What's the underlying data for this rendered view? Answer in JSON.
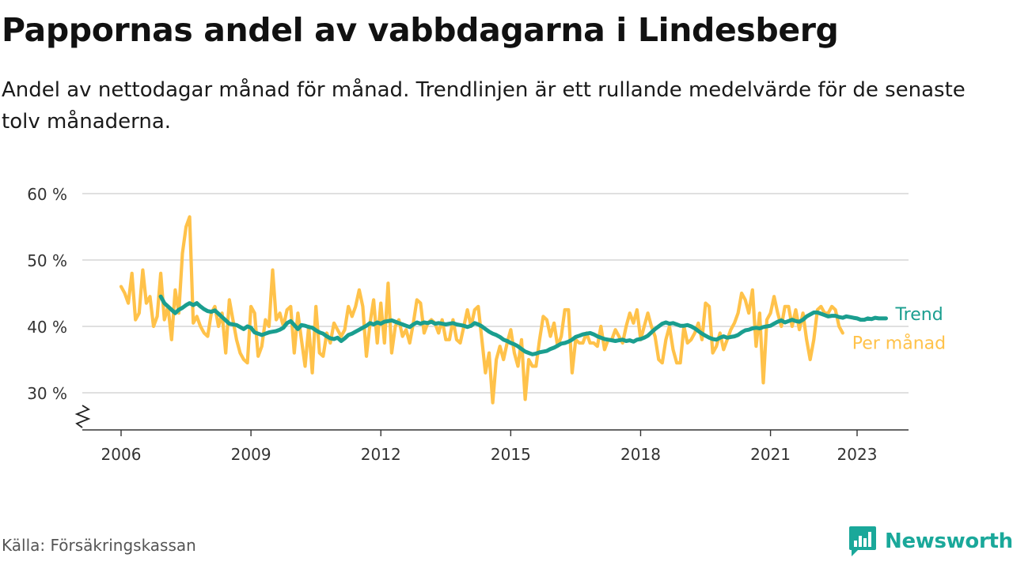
{
  "title": "Pappornas andel av vabbdagarna i Lindesberg",
  "subtitle": "Andel av nettodagar månad för månad. Trendlinjen är ett rullande medelvärde för de senaste tolv månaderna.",
  "source": "Källa: Försäkringskassan",
  "brand": {
    "name": "Newsworthy",
    "color": "#1aa89a",
    "icon": "bar-chart-speech-bubble-icon"
  },
  "chart_data": {
    "type": "line",
    "start": "2006-01",
    "x_ticks": [
      "2006",
      "2009",
      "2012",
      "2015",
      "2018",
      "2021",
      "2023"
    ],
    "y_ticks": [
      30,
      40,
      50,
      60
    ],
    "y_tick_suffix": " %",
    "ylim": [
      25,
      60
    ],
    "y_axis_break": true,
    "grid": true,
    "xlabel": "",
    "ylabel": "",
    "series": [
      {
        "name": "Per månad",
        "color": "#ffc24a",
        "start": "2006-01",
        "values": [
          46,
          45,
          43.5,
          48,
          41,
          42,
          48.5,
          43.5,
          44.5,
          40,
          41.5,
          48,
          41,
          43,
          38,
          45.5,
          42,
          51,
          55,
          56.5,
          40.5,
          41.5,
          40,
          39,
          38.5,
          42,
          43,
          40,
          42,
          36,
          44,
          41,
          38,
          36,
          35,
          34.5,
          43,
          42,
          35.5,
          37,
          41,
          40,
          48.5,
          41,
          42,
          40,
          42.5,
          43,
          36,
          42,
          38,
          34,
          40,
          33,
          43,
          36,
          35.5,
          39,
          37.5,
          40.5,
          39.5,
          38.5,
          39.5,
          43,
          41.5,
          43,
          45.5,
          43,
          35.5,
          40.5,
          44,
          37.5,
          43.5,
          37.5,
          46.5,
          36,
          40,
          41,
          38.5,
          39.5,
          37.5,
          40.5,
          44,
          43.5,
          39,
          40.5,
          41,
          40.5,
          39,
          41,
          38,
          38,
          41,
          38,
          37.5,
          40,
          42.5,
          40,
          42.5,
          43,
          38,
          33,
          36,
          28.5,
          35,
          37,
          35,
          37.5,
          39.5,
          36,
          34,
          38,
          29,
          35,
          34,
          34,
          38,
          41.5,
          41,
          38.5,
          40.5,
          37,
          38.5,
          42.5,
          42.5,
          33,
          38,
          37.5,
          37.5,
          39,
          37.5,
          37.5,
          37,
          40,
          36.5,
          38,
          38,
          39.5,
          38.5,
          37.5,
          40,
          42,
          40.5,
          42.5,
          38,
          40,
          42,
          40,
          38.5,
          35,
          34.5,
          38,
          40,
          36.5,
          34.5,
          34.5,
          40,
          37.5,
          38,
          39,
          40.5,
          38,
          43.5,
          43,
          36,
          37,
          39,
          36.5,
          38,
          39.5,
          40.5,
          42,
          45,
          44,
          42,
          45.5,
          37,
          42,
          31.5,
          41,
          42,
          44.5,
          42,
          40,
          43,
          43,
          40,
          42.5,
          39.5,
          42,
          38,
          35,
          38,
          42.5,
          43,
          42,
          42,
          43,
          42.5,
          40,
          39
        ]
      },
      {
        "name": "Trend",
        "color": "#1a9e8f",
        "start": "2006-12",
        "values": [
          44.5,
          43.5,
          43,
          42.5,
          42,
          42.5,
          42.8,
          43.2,
          43.5,
          43.2,
          43.5,
          43,
          42.6,
          42.3,
          42.2,
          42.4,
          41.9,
          41.4,
          40.9,
          40.4,
          40.3,
          40.2,
          39.9,
          39.6,
          40,
          39.8,
          39.1,
          38.9,
          38.7,
          38.9,
          39.1,
          39.2,
          39.3,
          39.5,
          39.8,
          40.5,
          40.8,
          40.2,
          39.6,
          40.2,
          40.1,
          39.9,
          39.8,
          39.4,
          39.1,
          38.9,
          38.5,
          38.2,
          38.1,
          38.3,
          37.8,
          38.2,
          38.7,
          38.9,
          39.2,
          39.5,
          39.8,
          40.1,
          40.5,
          40.3,
          40.6,
          40.4,
          40.7,
          40.8,
          40.9,
          40.7,
          40.5,
          40.3,
          40.1,
          39.9,
          40.3,
          40.6,
          40.4,
          40.6,
          40.5,
          40.7,
          40.4,
          40.5,
          40.4,
          40.3,
          40.4,
          40.5,
          40.3,
          40.2,
          40.1,
          39.9,
          40.1,
          40.5,
          40.3,
          40,
          39.6,
          39.2,
          38.9,
          38.7,
          38.4,
          38,
          37.8,
          37.5,
          37.3,
          37,
          36.6,
          36.2,
          36,
          35.8,
          35.9,
          36.1,
          36.2,
          36.3,
          36.6,
          36.8,
          37.1,
          37.4,
          37.5,
          37.7,
          38,
          38.4,
          38.6,
          38.8,
          38.9,
          39,
          38.8,
          38.5,
          38.3,
          38.1,
          38,
          37.9,
          37.8,
          37.9,
          38,
          37.8,
          37.9,
          37.7,
          38,
          38.1,
          38.3,
          38.6,
          39.1,
          39.6,
          40,
          40.4,
          40.6,
          40.4,
          40.5,
          40.3,
          40.1,
          40.1,
          40.2,
          40,
          39.7,
          39.3,
          38.9,
          38.6,
          38.3,
          38.1,
          38,
          38.3,
          38.5,
          38.3,
          38.4,
          38.5,
          38.7,
          39.1,
          39.4,
          39.5,
          39.7,
          39.8,
          39.7,
          39.9,
          40,
          40.1,
          40.4,
          40.7,
          40.9,
          40.6,
          40.8,
          41,
          40.8,
          40.7,
          41,
          41.5,
          41.8,
          42.1,
          42.1,
          41.9,
          41.7,
          41.5,
          41.6,
          41.6,
          41.4,
          41.3,
          41.5,
          41.4,
          41.3,
          41.2,
          41,
          41,
          41.2,
          41.1,
          41.3,
          41.2,
          41.2,
          41.2
        ]
      }
    ]
  }
}
